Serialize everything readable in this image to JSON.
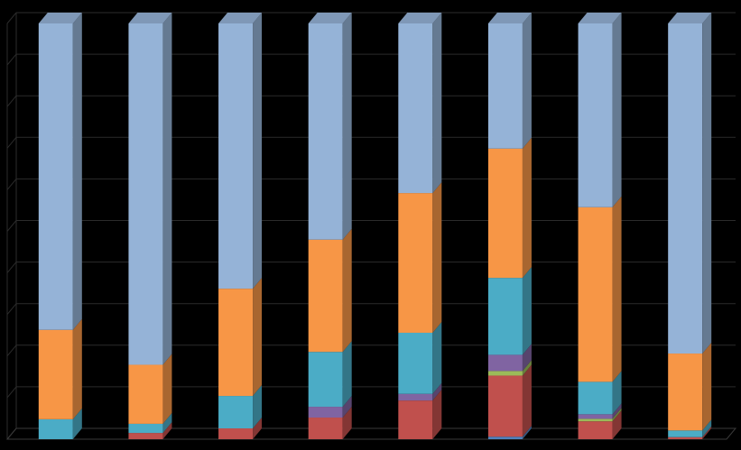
{
  "chart_data": {
    "type": "bar",
    "stacked": true,
    "percent_stacked": true,
    "three_d": true,
    "grid": false,
    "legend": "none",
    "title": "",
    "xlabel": "",
    "ylabel": "",
    "ylim": [
      0,
      100
    ],
    "categories": [
      "",
      "",
      "",
      "",
      "",
      "",
      "",
      ""
    ],
    "series": [
      {
        "color": "#4f81bd",
        "values": [
          0,
          0,
          0,
          0,
          0,
          0.6,
          0,
          0
        ]
      },
      {
        "color": "#c0504d",
        "values": [
          0,
          1.5,
          2.6,
          5.2,
          9.3,
          14.7,
          4.3,
          0.5
        ]
      },
      {
        "color": "#9bbb59",
        "values": [
          0,
          0,
          0,
          0,
          0,
          1.1,
          0.6,
          0
        ]
      },
      {
        "color": "#8064a2",
        "values": [
          0,
          0,
          0,
          2.6,
          1.6,
          3.9,
          1.1,
          0
        ]
      },
      {
        "color": "#4bacc6",
        "values": [
          4.8,
          2.2,
          7.8,
          13.2,
          14.7,
          18.5,
          7.8,
          1.6
        ]
      },
      {
        "color": "#f79646",
        "values": [
          21.5,
          14.2,
          25.8,
          27.0,
          33.6,
          31.1,
          42.0,
          18.5
        ]
      },
      {
        "color": "#95b3d7",
        "values": [
          73.7,
          82.1,
          63.8,
          52.0,
          40.8,
          30.1,
          44.2,
          79.4
        ]
      }
    ]
  }
}
